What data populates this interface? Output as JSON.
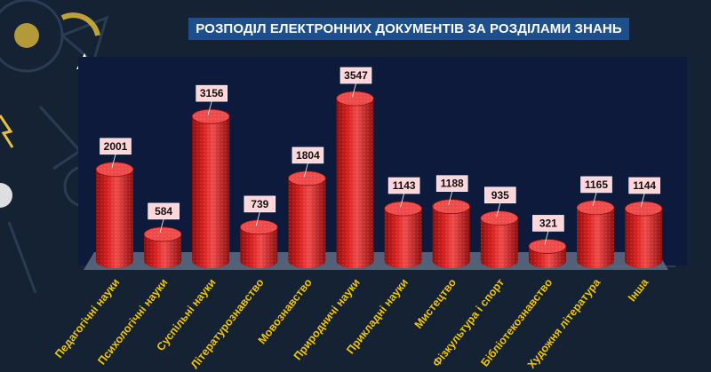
{
  "chart_data": {
    "type": "bar",
    "title": "РОЗПОДІЛ ЕЛЕКТРОННИХ ДОКУМЕНТІВ ЗА РОЗДІЛАМИ ЗНАНЬ",
    "categories": [
      "Педагогічні науки",
      "Психологічні науки",
      "Суспільні науки",
      "Літературознавство",
      "Мовознавство",
      "Природничі науки",
      "Прикладні науки",
      "Мистецтво",
      "Фізкультура і спорт",
      "Бібліотекознавство",
      "Художня література",
      "Інша"
    ],
    "values": [
      2001,
      584,
      3156,
      739,
      1804,
      3547,
      1143,
      1188,
      935,
      321,
      1165,
      1144
    ],
    "colors": {
      "bar": "#d81e1e",
      "bar_top": "#ee4a4a",
      "bar_edge": "#8e0d0d",
      "label_bg": "#ffd7da",
      "category_text": "#f2c500",
      "plot_bg": "#0d1a3c",
      "floor": "#5e6f84"
    },
    "grid": false,
    "legend": "none"
  }
}
